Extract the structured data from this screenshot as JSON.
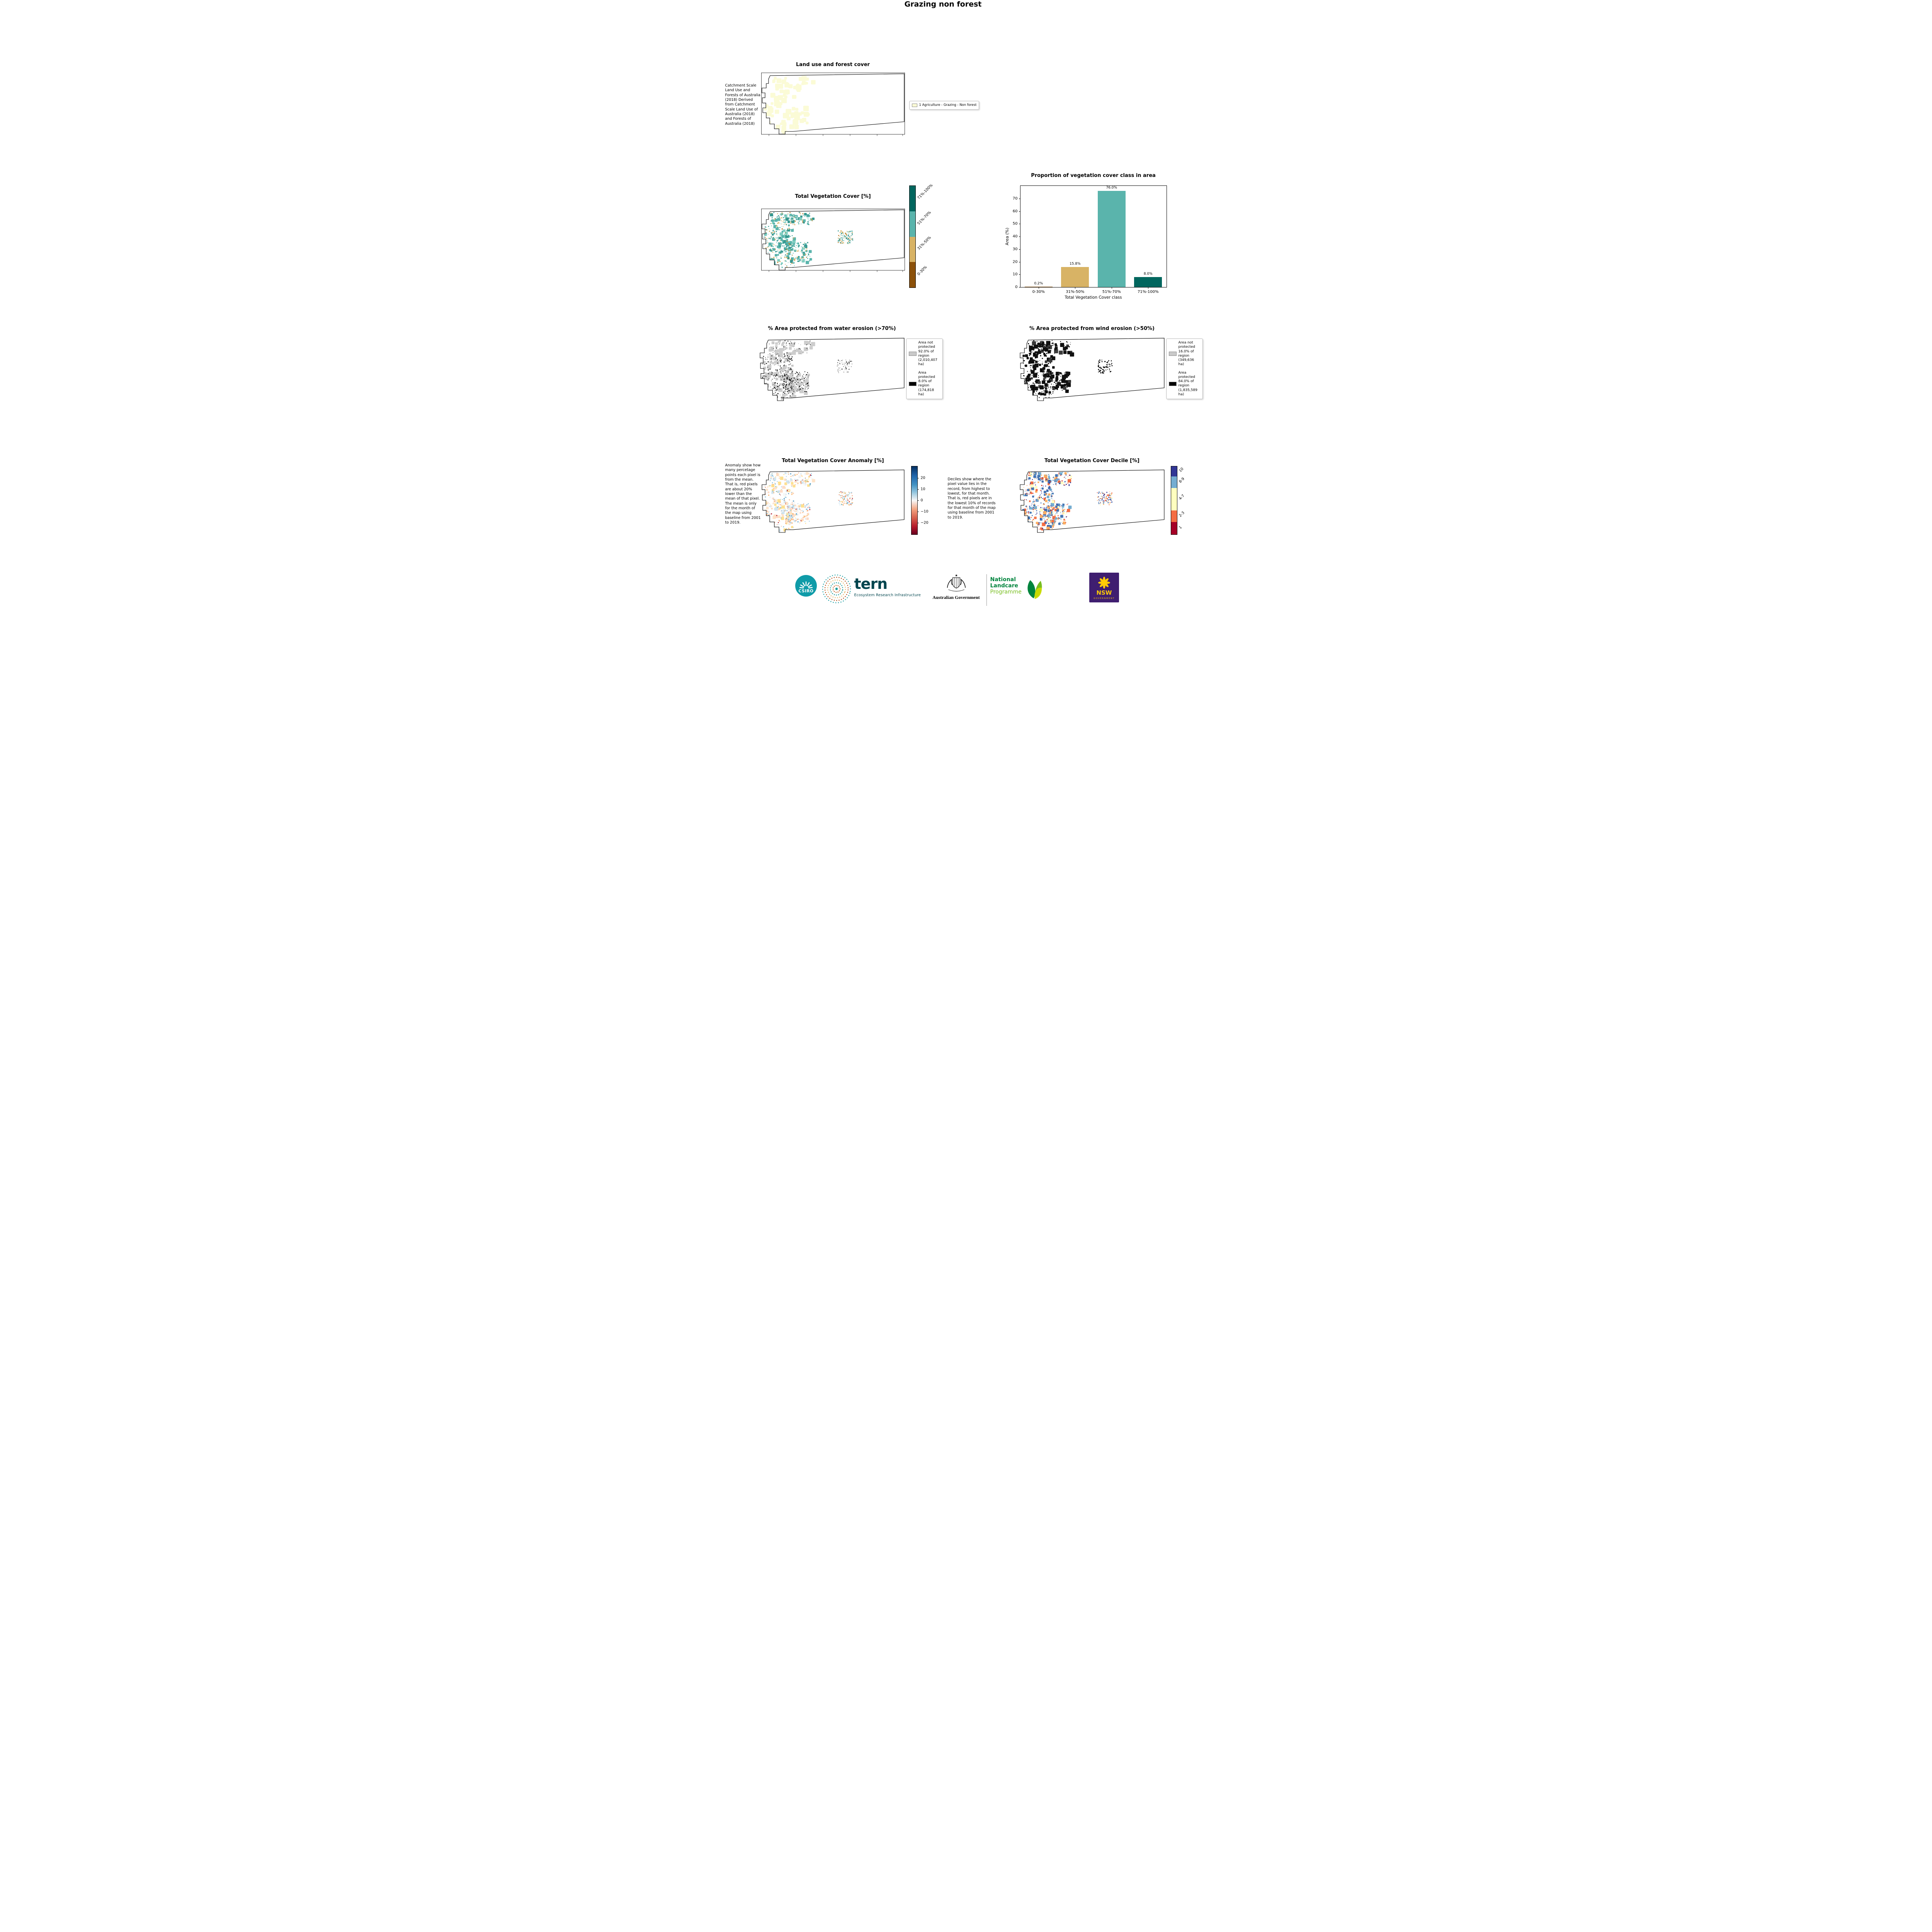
{
  "page_title": "Grazing non forest",
  "panels": {
    "landuse": {
      "title": "Land use and forest cover",
      "caption": "Catchment Scale Land Use and Forests of Australia (2018) Derived from Catchment Scale Land Use of Australia (2018) and Forests of Australia (2018)",
      "legend": [
        {
          "label": "1 Agriculture - Grazing - Non forest",
          "color": "#fbfbd6"
        }
      ]
    },
    "tvc_map": {
      "title": "Total Vegetation Cover [%]",
      "colorbar": [
        {
          "label": "71%-100%",
          "color": "#01665e"
        },
        {
          "label": "51%-70%",
          "color": "#5ab4ac"
        },
        {
          "label": "31%-50%",
          "color": "#d8b365"
        },
        {
          "label": "0-30%",
          "color": "#8c510a"
        }
      ]
    },
    "water": {
      "title": "% Area protected from water erosion (>70%)",
      "legend": [
        {
          "label": "Area not protected 92.0% of region (2,010,407 ha)",
          "color": "#c9c9c9"
        },
        {
          "label": "Area protected 8.0% of region (174,818 ha)",
          "color": "#000000"
        }
      ]
    },
    "wind": {
      "title": "% Area protected from wind erosion (>50%)",
      "legend": [
        {
          "label": "Area not protected 16.0% of region (349,636 ha)",
          "color": "#c9c9c9"
        },
        {
          "label": "Area protected 84.0% of region (1,835,589 ha)",
          "color": "#000000"
        }
      ]
    },
    "anomaly": {
      "title": "Total Vegetation Cover Anomaly [%]",
      "caption": "Anomaly show how many percetage points each pixel is from the mean. That is, red pixels are about 20% lower than the mean of that pixel. The mean is only for the month of the map using baseline from 2001 to 2019.",
      "colorbar_ticks": [
        "20",
        "10",
        "0",
        "−10",
        "−20"
      ],
      "colorbar_colors": {
        "top": "#2166ac",
        "mid": "#f7f7f7",
        "bottom": "#b2182b"
      }
    },
    "decile": {
      "title": "Total Vegetation Cover Decile [%]",
      "caption": "Deciles show where the pixel value lies in the record, from highest to lowest, for that month. That is, red pixels are in the lowest 10% of records for that month of the map using baseline from 2001 to 2019.",
      "colorbar": [
        {
          "label": "10",
          "color": "#313695",
          "frac": 0.15
        },
        {
          "label": "8-9",
          "color": "#74add1",
          "frac": 0.17
        },
        {
          "label": "4-7",
          "color": "#ffffbf",
          "frac": 0.33
        },
        {
          "label": "2-3",
          "color": "#f46d43",
          "frac": 0.17
        },
        {
          "label": "1",
          "color": "#a50026",
          "frac": 0.18
        }
      ]
    }
  },
  "chart_data": {
    "type": "bar",
    "title": "Proportion of vegetation cover class in area",
    "categories": [
      "0-30%",
      "31%-50%",
      "51%-70%",
      "71%-100%"
    ],
    "values": [
      0.2,
      15.8,
      76.0,
      8.0
    ],
    "bar_labels": [
      "0.2%",
      "15.8%",
      "76.0%",
      "8.0%"
    ],
    "colors": [
      "#8c510a",
      "#d8b365",
      "#5ab4ac",
      "#01665e"
    ],
    "xlabel": "Total Vegetation Cover class",
    "ylabel": "Area (%)",
    "ylim": [
      0,
      80
    ],
    "yticks": [
      0,
      10,
      20,
      30,
      40,
      50,
      60,
      70
    ],
    "grid": false,
    "legend_position": "none"
  },
  "footer": {
    "csiro_label": "CSIRO",
    "tern_label": "tern",
    "tern_tagline": "Ecosystem Research Infrastructure",
    "aus_gov_label": "Australian Government",
    "landcare_line1": "National",
    "landcare_line2": "Landcare",
    "landcare_line3": "Programme",
    "nsw_label": "NSW",
    "nsw_sublabel": "GOVERNMENT"
  }
}
